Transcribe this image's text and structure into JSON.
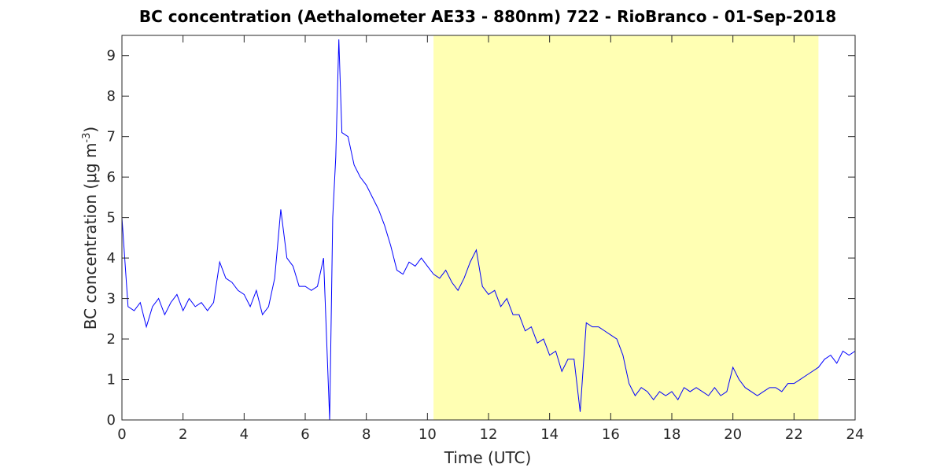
{
  "chart_data": {
    "type": "line",
    "title": "BC concentration (Aethalometer AE33 - 880nm) 722 - RioBranco - 01-Sep-2018",
    "ylabel": "BC concentration (μg m",
    "ylabel_sup": "-3",
    "ylabel_end": ")",
    "xlabel": "Time (UTC)",
    "xlim": [
      0,
      24
    ],
    "xticks": [
      0,
      2,
      4,
      6,
      8,
      10,
      12,
      14,
      16,
      18,
      20,
      22,
      24
    ],
    "ylim": [
      0,
      9.5
    ],
    "yticks": [
      0,
      1,
      2,
      3,
      4,
      5,
      6,
      7,
      8,
      9
    ],
    "highlight_x": [
      10.2,
      22.8
    ],
    "highlight_color": "#ffffb3",
    "series": [
      {
        "color": "#0000ff",
        "x": [
          0,
          0.2,
          0.4,
          0.6,
          0.8,
          1.0,
          1.2,
          1.4,
          1.6,
          1.8,
          2.0,
          2.2,
          2.4,
          2.6,
          2.8,
          3.0,
          3.2,
          3.4,
          3.6,
          3.8,
          4.0,
          4.2,
          4.4,
          4.6,
          4.8,
          5.0,
          5.2,
          5.4,
          5.6,
          5.8,
          6.0,
          6.2,
          6.4,
          6.6,
          6.8,
          6.9,
          7.0,
          7.1,
          7.2,
          7.4,
          7.6,
          7.8,
          8.0,
          8.2,
          8.4,
          8.6,
          8.8,
          9.0,
          9.2,
          9.4,
          9.6,
          9.8,
          10.0,
          10.2,
          10.4,
          10.6,
          10.8,
          11.0,
          11.2,
          11.4,
          11.6,
          11.8,
          12.0,
          12.2,
          12.4,
          12.6,
          12.8,
          13.0,
          13.2,
          13.4,
          13.6,
          13.8,
          14.0,
          14.2,
          14.4,
          14.6,
          14.8,
          15.0,
          15.2,
          15.4,
          15.6,
          15.8,
          16.0,
          16.2,
          16.4,
          16.6,
          16.8,
          17.0,
          17.2,
          17.4,
          17.6,
          17.8,
          18.0,
          18.2,
          18.4,
          18.6,
          18.8,
          19.0,
          19.2,
          19.4,
          19.6,
          19.8,
          20.0,
          20.2,
          20.4,
          20.6,
          20.8,
          21.0,
          21.2,
          21.4,
          21.6,
          21.8,
          22.0,
          22.2,
          22.4,
          22.6,
          22.8,
          23.0,
          23.2,
          23.4,
          23.6,
          23.8,
          24.0
        ],
        "values": [
          5.0,
          2.8,
          2.7,
          2.9,
          2.3,
          2.8,
          3.0,
          2.6,
          2.9,
          3.1,
          2.7,
          3.0,
          2.8,
          2.9,
          2.7,
          2.9,
          3.9,
          3.5,
          3.4,
          3.2,
          3.1,
          2.8,
          3.2,
          2.6,
          2.8,
          3.5,
          5.2,
          4.0,
          3.8,
          3.3,
          3.3,
          3.2,
          3.3,
          4.0,
          0.0,
          5.0,
          6.5,
          9.4,
          7.1,
          7.0,
          6.3,
          6.0,
          5.8,
          5.5,
          5.2,
          4.8,
          4.3,
          3.7,
          3.6,
          3.9,
          3.8,
          4.0,
          3.8,
          3.6,
          3.5,
          3.7,
          3.4,
          3.2,
          3.5,
          3.9,
          4.2,
          3.3,
          3.1,
          3.2,
          2.8,
          3.0,
          2.6,
          2.6,
          2.2,
          2.3,
          1.9,
          2.0,
          1.6,
          1.7,
          1.2,
          1.5,
          1.5,
          0.2,
          2.4,
          2.3,
          2.3,
          2.2,
          2.1,
          2.0,
          1.6,
          0.9,
          0.6,
          0.8,
          0.7,
          0.5,
          0.7,
          0.6,
          0.7,
          0.5,
          0.8,
          0.7,
          0.8,
          0.7,
          0.6,
          0.8,
          0.6,
          0.7,
          1.3,
          1.0,
          0.8,
          0.7,
          0.6,
          0.7,
          0.8,
          0.8,
          0.7,
          0.9,
          0.9,
          1.0,
          1.1,
          1.2,
          1.3,
          1.5,
          1.6,
          1.4,
          1.7,
          1.6,
          1.7
        ]
      }
    ]
  }
}
